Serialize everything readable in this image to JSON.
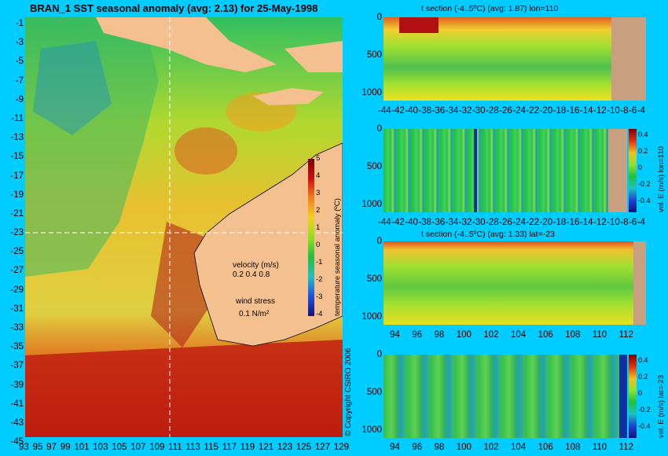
{
  "map": {
    "title": "BRAN_1 SST seasonal anomaly (avg: 2.13) for 25-May-1998",
    "lat_labels": [
      "-1",
      "-3",
      "-5",
      "-7",
      "-9",
      "-11",
      "-13",
      "-15",
      "-17",
      "-19",
      "-21",
      "-23",
      "-25",
      "-27",
      "-29",
      "-31",
      "-33",
      "-35",
      "-37",
      "-39",
      "-41",
      "-43",
      "-45"
    ],
    "lon_labels": [
      "93",
      "95",
      "97",
      "99",
      "101",
      "103",
      "105",
      "107",
      "109",
      "111",
      "113",
      "115",
      "117",
      "119",
      "121",
      "123",
      "125",
      "127",
      "129"
    ],
    "colorbar": {
      "ticks": [
        "5",
        "4",
        "3",
        "2",
        "1",
        "0",
        "-1",
        "-2",
        "-3",
        "-4"
      ],
      "label": "temperature seasonal anomaly (ºC)"
    },
    "velocity_legend": {
      "title": "velocity (m/s)",
      "scale": "0.2 0.4 0.8"
    },
    "wind_legend": {
      "title": "wind stress",
      "scale": "0.1 N/m²"
    },
    "copyright": "© Copyright CSIRO 2006"
  },
  "panels": [
    {
      "id": "t-section-lon110",
      "title": "t section (-4..5ºC) (avg: 1.87) lon=110",
      "y_ticks": [
        "0",
        "500",
        "1000"
      ],
      "x_ticks": [
        "-44",
        "-42",
        "-40",
        "-38",
        "-36",
        "-34",
        "-32",
        "-30",
        "-28",
        "-26",
        "-24",
        "-22",
        "-20",
        "-18",
        "-16",
        "-14",
        "-12",
        "-10",
        "-8",
        "-6",
        "-4"
      ],
      "colorbar": null
    },
    {
      "id": "vel-e-lon110",
      "title": "",
      "y_ticks": [
        "0",
        "500",
        "1000"
      ],
      "x_ticks": [
        "-44",
        "-42",
        "-40",
        "-38",
        "-36",
        "-34",
        "-32",
        "-30",
        "-28",
        "-26",
        "-24",
        "-22",
        "-20",
        "-18",
        "-16",
        "-14",
        "-12",
        "-10",
        "-8",
        "-6",
        "-4"
      ],
      "colorbar": {
        "ticks": [
          "0.4",
          "0.2",
          "0",
          "-0.2",
          "-0.4"
        ],
        "label": "vel. E (m/s) lon=110"
      }
    },
    {
      "id": "t-section-lat-23",
      "title": "t section (-4..5ºC) (avg: 1.33) lat=-23",
      "y_ticks": [
        "0",
        "500",
        "1000"
      ],
      "x_ticks": [
        "94",
        "96",
        "98",
        "100",
        "102",
        "104",
        "106",
        "108",
        "110",
        "112"
      ],
      "colorbar": null
    },
    {
      "id": "vel-e-lat-23",
      "title": "",
      "y_ticks": [
        "0",
        "500",
        "1000"
      ],
      "x_ticks": [
        "94",
        "96",
        "98",
        "100",
        "102",
        "104",
        "106",
        "108",
        "110",
        "112"
      ],
      "colorbar": {
        "ticks": [
          "0.4",
          "0.2",
          "0",
          "-0.2",
          "-0.4"
        ],
        "label": "vel. E (m/s) lat=-23"
      }
    }
  ]
}
